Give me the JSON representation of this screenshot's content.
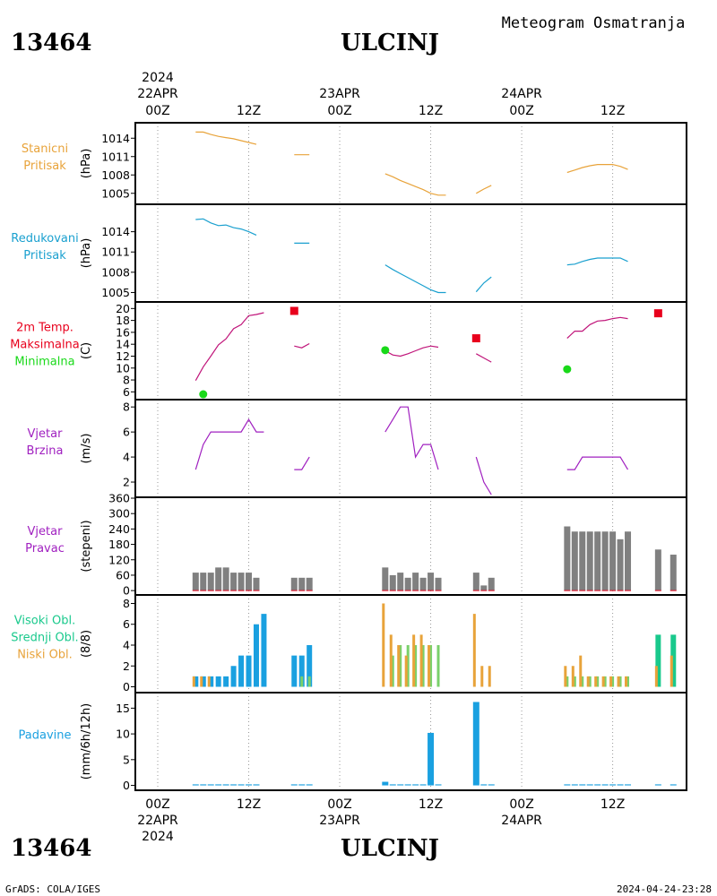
{
  "header": {
    "station_id": "13464",
    "station_name": "ULCINJ",
    "title": "Meteogram Osmatranja"
  },
  "footer": {
    "credit": "GrADS: COLA/IGES",
    "timestamp": "2024-04-24-23:28"
  },
  "colors": {
    "pressure": "#e8a33a",
    "reduced": "#1aa0cf",
    "temp_line": "#c0157a",
    "tmax": "#e8001c",
    "tmin": "#19d919",
    "wind": "#a020c0",
    "dir_bar": "#808080",
    "high_cloud": "#19c98c",
    "mid_cloud": "#7ad06a",
    "low_cloud": "#e8a33a",
    "precip": "#1aa0e0"
  },
  "time_axis": {
    "year": "2024",
    "date_labels": [
      "22APR",
      "23APR",
      "24APR"
    ],
    "hour_labels": [
      "00Z",
      "12Z",
      "00Z",
      "12Z",
      "00Z",
      "12Z"
    ],
    "hour_ticks": [
      0,
      12,
      24,
      36,
      48,
      60
    ]
  },
  "chart_data": [
    {
      "type": "line",
      "panel": "pressure",
      "labels": [
        "Stanicni",
        "Pritisak"
      ],
      "ylabel": "(hPa)",
      "yticks": [
        1005,
        1008,
        1011,
        1014
      ],
      "ylim": [
        1003.5,
        1015.5
      ],
      "segments": [
        [
          [
            5,
            1015.0
          ],
          [
            6,
            1015.0
          ],
          [
            7,
            1014.6
          ],
          [
            8,
            1014.3
          ],
          [
            9,
            1014.1
          ],
          [
            10,
            1013.9
          ],
          [
            11,
            1013.6
          ],
          [
            12,
            1013.3
          ],
          [
            13,
            1013.0
          ]
        ],
        [
          [
            18,
            1011.3
          ],
          [
            19,
            1011.3
          ],
          [
            20,
            1011.3
          ]
        ],
        [
          [
            30,
            1008.2
          ],
          [
            31,
            1007.7
          ],
          [
            32,
            1007.1
          ],
          [
            33,
            1006.6
          ],
          [
            34,
            1006.1
          ],
          [
            35,
            1005.6
          ],
          [
            36,
            1005.0
          ],
          [
            37,
            1004.7
          ],
          [
            38,
            1004.7
          ]
        ],
        [
          [
            42,
            1005.0
          ],
          [
            43,
            1005.7
          ],
          [
            44,
            1006.3
          ]
        ],
        [
          [
            54,
            1008.4
          ],
          [
            55,
            1008.8
          ],
          [
            56,
            1009.2
          ],
          [
            57,
            1009.5
          ],
          [
            58,
            1009.7
          ],
          [
            59,
            1009.7
          ],
          [
            60,
            1009.7
          ],
          [
            61,
            1009.4
          ],
          [
            62,
            1008.9
          ]
        ]
      ]
    },
    {
      "type": "line",
      "panel": "reduced_pressure",
      "labels": [
        "Redukovani",
        "Pritisak"
      ],
      "ylabel": "(hPa)",
      "yticks": [
        1005,
        1008,
        1011,
        1014
      ],
      "ylim": [
        1004.0,
        1017.0
      ],
      "segments": [
        [
          [
            5,
            1015.8
          ],
          [
            6,
            1015.9
          ],
          [
            7,
            1015.3
          ],
          [
            8,
            1014.9
          ],
          [
            9,
            1015.0
          ],
          [
            10,
            1014.6
          ],
          [
            11,
            1014.4
          ],
          [
            12,
            1014.0
          ],
          [
            13,
            1013.5
          ]
        ],
        [
          [
            18,
            1012.3
          ],
          [
            19,
            1012.3
          ],
          [
            20,
            1012.3
          ]
        ],
        [
          [
            30,
            1009.1
          ],
          [
            31,
            1008.4
          ],
          [
            32,
            1007.8
          ],
          [
            33,
            1007.2
          ],
          [
            34,
            1006.6
          ],
          [
            35,
            1006.0
          ],
          [
            36,
            1005.4
          ],
          [
            37,
            1005.0
          ],
          [
            38,
            1005.0
          ]
        ],
        [
          [
            42,
            1005.1
          ],
          [
            43,
            1006.4
          ],
          [
            44,
            1007.3
          ]
        ],
        [
          [
            54,
            1009.1
          ],
          [
            55,
            1009.2
          ],
          [
            56,
            1009.6
          ],
          [
            57,
            1009.9
          ],
          [
            58,
            1010.1
          ],
          [
            59,
            1010.1
          ],
          [
            60,
            1010.1
          ],
          [
            61,
            1010.1
          ],
          [
            62,
            1009.6
          ]
        ]
      ]
    },
    {
      "type": "line",
      "panel": "temperature",
      "labels": [
        "2m Temp.",
        "Maksimalna",
        "Minimalna"
      ],
      "ylabel": "(C)",
      "yticks": [
        6,
        8,
        10,
        12,
        14,
        16,
        18,
        20
      ],
      "ylim": [
        5.0,
        20.5
      ],
      "segments": [
        [
          [
            5,
            7.9
          ],
          [
            6,
            10.2
          ],
          [
            7,
            12.0
          ],
          [
            8,
            13.9
          ],
          [
            9,
            14.9
          ],
          [
            10,
            16.6
          ],
          [
            11,
            17.3
          ],
          [
            12,
            18.8
          ],
          [
            13,
            19.0
          ],
          [
            14,
            19.3
          ]
        ],
        [
          [
            18,
            13.7
          ],
          [
            19,
            13.4
          ],
          [
            20,
            14.1
          ]
        ],
        [
          [
            30,
            12.9
          ],
          [
            31,
            12.2
          ],
          [
            32,
            12.0
          ],
          [
            33,
            12.4
          ],
          [
            34,
            12.9
          ],
          [
            35,
            13.4
          ],
          [
            36,
            13.7
          ],
          [
            37,
            13.5
          ]
        ],
        [
          [
            42,
            12.4
          ],
          [
            43,
            11.7
          ],
          [
            44,
            11.0
          ]
        ],
        [
          [
            54,
            15.0
          ],
          [
            55,
            16.2
          ],
          [
            56,
            16.2
          ],
          [
            57,
            17.3
          ],
          [
            58,
            17.9
          ],
          [
            59,
            18.0
          ],
          [
            60,
            18.3
          ],
          [
            61,
            18.5
          ],
          [
            62,
            18.3
          ]
        ]
      ],
      "tmax": [
        [
          18,
          19.6
        ],
        [
          42,
          15.0
        ],
        [
          66,
          19.2
        ]
      ],
      "tmin": [
        [
          6,
          5.6
        ],
        [
          30,
          13.0
        ],
        [
          54,
          9.8
        ]
      ]
    },
    {
      "type": "line",
      "panel": "wind_speed",
      "labels": [
        "Vjetar",
        "Brzina"
      ],
      "ylabel": "(m/s)",
      "yticks": [
        2,
        4,
        6,
        8
      ],
      "ylim": [
        1.0,
        8.3
      ],
      "segments": [
        [
          [
            5,
            3
          ],
          [
            6,
            5
          ],
          [
            7,
            6
          ],
          [
            8,
            6
          ],
          [
            9,
            6
          ],
          [
            10,
            6
          ],
          [
            11,
            6
          ],
          [
            12,
            7
          ],
          [
            13,
            6
          ],
          [
            14,
            6
          ]
        ],
        [
          [
            18,
            3
          ],
          [
            19,
            3
          ],
          [
            20,
            4
          ]
        ],
        [
          [
            30,
            6
          ],
          [
            31,
            7
          ],
          [
            32,
            8
          ],
          [
            33,
            8
          ],
          [
            34,
            4
          ],
          [
            35,
            5
          ],
          [
            36,
            5
          ],
          [
            37,
            3
          ]
        ],
        [
          [
            42,
            4
          ],
          [
            43,
            2
          ],
          [
            44,
            1
          ]
        ],
        [
          [
            54,
            3
          ],
          [
            55,
            3
          ],
          [
            56,
            4
          ],
          [
            57,
            4
          ],
          [
            58,
            4
          ],
          [
            59,
            4
          ],
          [
            60,
            4
          ],
          [
            61,
            4
          ],
          [
            62,
            3
          ]
        ]
      ]
    },
    {
      "type": "bar",
      "panel": "wind_direction",
      "labels": [
        "Vjetar",
        "Pravac"
      ],
      "ylabel": "(stepeni)",
      "yticks": [
        0,
        60,
        120,
        180,
        240,
        300,
        360
      ],
      "ylim": [
        -10,
        360
      ],
      "bars": [
        [
          5,
          70
        ],
        [
          6,
          70
        ],
        [
          7,
          70
        ],
        [
          8,
          90
        ],
        [
          9,
          90
        ],
        [
          10,
          70
        ],
        [
          11,
          70
        ],
        [
          12,
          70
        ],
        [
          13,
          50
        ],
        [
          18,
          50
        ],
        [
          19,
          50
        ],
        [
          20,
          50
        ],
        [
          30,
          90
        ],
        [
          31,
          60
        ],
        [
          32,
          70
        ],
        [
          33,
          50
        ],
        [
          34,
          70
        ],
        [
          35,
          50
        ],
        [
          36,
          70
        ],
        [
          37,
          50
        ],
        [
          42,
          70
        ],
        [
          43,
          20
        ],
        [
          44,
          50
        ],
        [
          54,
          250
        ],
        [
          55,
          230
        ],
        [
          56,
          230
        ],
        [
          57,
          230
        ],
        [
          58,
          230
        ],
        [
          59,
          230
        ],
        [
          60,
          230
        ],
        [
          61,
          200
        ],
        [
          62,
          230
        ],
        [
          66,
          160
        ],
        [
          68,
          140
        ]
      ]
    },
    {
      "type": "bar",
      "panel": "clouds",
      "labels": [
        "Visoki Obl.",
        "Srednji Obl.",
        "Niski Obl."
      ],
      "ylabel": "(8/8)",
      "yticks": [
        0,
        2,
        4,
        6,
        8
      ],
      "ylim": [
        -0.3,
        8.3
      ],
      "series": [
        {
          "name": "Visoki Obl.",
          "values": [
            [
              5,
              1
            ],
            [
              6,
              1
            ],
            [
              7,
              1
            ],
            [
              8,
              1
            ],
            [
              9,
              1
            ],
            [
              10,
              2
            ],
            [
              11,
              3
            ],
            [
              12,
              3
            ],
            [
              13,
              6
            ],
            [
              14,
              7
            ],
            [
              18,
              3
            ],
            [
              19,
              3
            ],
            [
              20,
              4
            ],
            [
              66,
              5
            ],
            [
              68,
              5
            ]
          ]
        },
        {
          "name": "Srednji Obl.",
          "values": [
            [
              31,
              3
            ],
            [
              32,
              4
            ],
            [
              33,
              4
            ],
            [
              34,
              4
            ],
            [
              35,
              4
            ],
            [
              36,
              4
            ],
            [
              37,
              4
            ],
            [
              54,
              1
            ],
            [
              55,
              1
            ],
            [
              56,
              1
            ],
            [
              57,
              1
            ],
            [
              58,
              1
            ],
            [
              59,
              1
            ],
            [
              60,
              1
            ],
            [
              61,
              1
            ],
            [
              62,
              1
            ],
            [
              19,
              1
            ],
            [
              20,
              1
            ]
          ]
        },
        {
          "name": "Niski Obl.",
          "values": [
            [
              5,
              1
            ],
            [
              6,
              1
            ],
            [
              7,
              1
            ],
            [
              30,
              8
            ],
            [
              31,
              5
            ],
            [
              32,
              4
            ],
            [
              33,
              3
            ],
            [
              34,
              5
            ],
            [
              35,
              5
            ],
            [
              36,
              4
            ],
            [
              42,
              7
            ],
            [
              43,
              2
            ],
            [
              44,
              2
            ],
            [
              54,
              2
            ],
            [
              55,
              2
            ],
            [
              56,
              3
            ],
            [
              57,
              1
            ],
            [
              58,
              1
            ],
            [
              59,
              1
            ],
            [
              60,
              1
            ],
            [
              61,
              1
            ],
            [
              62,
              1
            ],
            [
              66,
              2
            ],
            [
              68,
              3
            ]
          ]
        }
      ]
    },
    {
      "type": "bar",
      "panel": "precipitation",
      "labels": [
        "Padavine"
      ],
      "ylabel": "(mm/6h/12h)",
      "yticks": [
        0,
        5,
        10,
        15
      ],
      "ylim": [
        -0.6,
        17.5
      ],
      "bars": [
        [
          5,
          0.2
        ],
        [
          6,
          0.2
        ],
        [
          7,
          0.2
        ],
        [
          8,
          0.2
        ],
        [
          9,
          0.2
        ],
        [
          10,
          0.2
        ],
        [
          11,
          0.2
        ],
        [
          12,
          0.2
        ],
        [
          13,
          0.2
        ],
        [
          18,
          0.2
        ],
        [
          19,
          0.2
        ],
        [
          20,
          0.2
        ],
        [
          30,
          0.7
        ],
        [
          31,
          0.2
        ],
        [
          32,
          0.2
        ],
        [
          33,
          0.2
        ],
        [
          34,
          0.2
        ],
        [
          35,
          0.2
        ],
        [
          36,
          10.2
        ],
        [
          37,
          0.2
        ],
        [
          42,
          16.2
        ],
        [
          43,
          0.2
        ],
        [
          44,
          0.2
        ],
        [
          54,
          0.2
        ],
        [
          55,
          0.2
        ],
        [
          56,
          0.2
        ],
        [
          57,
          0.2
        ],
        [
          58,
          0.2
        ],
        [
          59,
          0.2
        ],
        [
          60,
          0.2
        ],
        [
          61,
          0.2
        ],
        [
          62,
          0.2
        ],
        [
          66,
          0.2
        ],
        [
          68,
          0.2
        ]
      ]
    }
  ]
}
